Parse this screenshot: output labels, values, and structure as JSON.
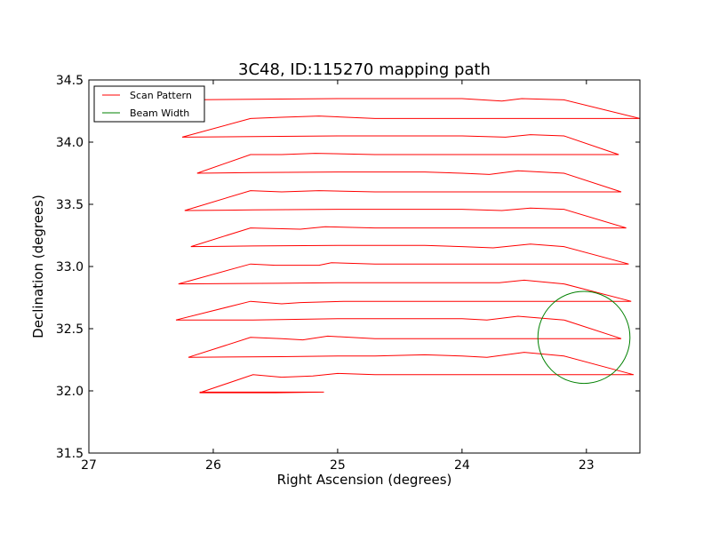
{
  "chart_data": {
    "type": "line",
    "title": "3C48, ID:115270 mapping path",
    "xlabel": "Right Ascension (degrees)",
    "ylabel": "Declination (degrees)",
    "xlim": [
      27.0,
      22.57
    ],
    "ylim": [
      31.5,
      34.5
    ],
    "x_inverted": true,
    "xticks": [
      27,
      26,
      25,
      24,
      23
    ],
    "xtick_labels": [
      "27",
      "26",
      "25",
      "24",
      "23"
    ],
    "yticks": [
      31.5,
      32.0,
      32.5,
      33.0,
      33.5,
      34.0,
      34.5
    ],
    "ytick_labels": [
      "31.5",
      "32.0",
      "32.5",
      "33.0",
      "33.5",
      "34.0",
      "34.5"
    ],
    "grid": false,
    "legend": {
      "placement": "top-left",
      "entries": [
        "Scan Pattern",
        "Beam Width"
      ]
    },
    "series": [
      {
        "name": "Scan Pattern",
        "color": "#ff0000",
        "x": [
          26.11,
          25.5,
          25.11,
          25.11,
          25.11,
          25.5,
          26.11,
          25.68,
          25.45,
          25.2,
          25.0,
          24.7,
          24.3,
          24.0,
          23.85,
          23.5,
          23.18,
          22.62,
          23.18,
          23.5,
          23.8,
          24.0,
          24.3,
          24.7,
          25.0,
          25.45,
          26.2,
          25.7,
          25.45,
          25.28,
          25.08,
          24.7,
          24.3,
          24.0,
          23.85,
          23.5,
          23.18,
          22.72,
          23.18,
          23.55,
          23.8,
          24.0,
          24.3,
          24.7,
          25.0,
          25.68,
          26.3,
          25.7,
          25.45,
          25.3,
          24.95,
          24.7,
          24.3,
          24.0,
          23.85,
          23.55,
          23.18,
          22.64,
          23.18,
          23.5,
          23.7,
          24.0,
          24.3,
          24.7,
          25.0,
          25.48,
          26.28,
          25.7,
          25.5,
          25.15,
          25.05,
          24.7,
          24.3,
          24.0,
          23.8,
          23.5,
          23.18,
          22.66,
          23.18,
          23.45,
          23.75,
          24.0,
          24.3,
          24.7,
          25.0,
          25.68,
          26.18,
          25.7,
          25.3,
          25.1,
          24.7,
          24.3,
          24.0,
          23.8,
          23.48,
          23.18,
          22.68,
          23.18,
          23.45,
          23.68,
          24.0,
          24.3,
          24.7,
          25.0,
          25.68,
          26.23,
          25.7,
          25.45,
          25.15,
          24.7,
          24.3,
          24.0,
          23.8,
          23.5,
          23.18,
          22.72,
          23.18,
          23.55,
          23.78,
          24.0,
          24.3,
          24.7,
          25.0,
          25.68,
          26.13,
          25.7,
          25.45,
          25.18,
          24.7,
          24.3,
          24.0,
          23.7,
          23.42,
          23.18,
          22.74,
          23.18,
          23.45,
          23.65,
          24.0,
          24.3,
          24.7,
          25.0,
          25.68,
          26.25,
          25.7,
          25.45,
          25.15,
          24.7,
          24.3,
          24.0,
          23.8,
          23.5,
          23.18,
          22.57,
          23.18,
          23.52,
          23.68,
          24.0,
          24.3,
          24.7,
          25.0,
          25.68,
          26.22
        ],
        "y": [
          31.99,
          31.99,
          31.99,
          31.99,
          31.99,
          31.985,
          31.985,
          32.13,
          32.11,
          32.12,
          32.14,
          32.13,
          32.13,
          32.13,
          32.13,
          32.13,
          32.13,
          32.13,
          32.28,
          32.31,
          32.27,
          32.28,
          32.29,
          32.28,
          32.28,
          32.275,
          32.27,
          32.43,
          32.42,
          32.41,
          32.44,
          32.42,
          32.42,
          32.42,
          32.42,
          32.42,
          32.42,
          32.42,
          32.57,
          32.6,
          32.57,
          32.58,
          32.58,
          32.58,
          32.58,
          32.57,
          32.57,
          32.72,
          32.7,
          32.71,
          32.72,
          32.72,
          32.72,
          32.72,
          32.72,
          32.72,
          32.72,
          32.72,
          32.86,
          32.89,
          32.87,
          32.87,
          32.87,
          32.87,
          32.87,
          32.865,
          32.86,
          33.02,
          33.01,
          33.01,
          33.03,
          33.02,
          33.02,
          33.02,
          33.02,
          33.02,
          33.02,
          33.02,
          33.16,
          33.18,
          33.15,
          33.16,
          33.17,
          33.17,
          33.17,
          33.165,
          33.16,
          33.31,
          33.3,
          33.32,
          33.31,
          33.31,
          33.31,
          33.31,
          33.31,
          33.31,
          33.31,
          33.46,
          33.47,
          33.45,
          33.46,
          33.46,
          33.46,
          33.46,
          33.455,
          33.45,
          33.61,
          33.6,
          33.61,
          33.6,
          33.6,
          33.6,
          33.6,
          33.6,
          33.6,
          33.6,
          33.75,
          33.77,
          33.74,
          33.75,
          33.76,
          33.76,
          33.76,
          33.755,
          33.75,
          33.9,
          33.9,
          33.91,
          33.9,
          33.9,
          33.9,
          33.9,
          33.9,
          33.9,
          33.9,
          34.05,
          34.06,
          34.04,
          34.05,
          34.05,
          34.05,
          34.05,
          34.045,
          34.04,
          34.19,
          34.2,
          34.21,
          34.19,
          34.19,
          34.19,
          34.19,
          34.19,
          34.19,
          34.19,
          34.34,
          34.35,
          34.33,
          34.35,
          34.35,
          34.35,
          34.35,
          34.345,
          34.34
        ]
      },
      {
        "name": "Beam Width",
        "color": "#008000",
        "shape": "circle",
        "center": [
          23.02,
          32.43
        ],
        "radius_deg": 0.37
      }
    ]
  }
}
